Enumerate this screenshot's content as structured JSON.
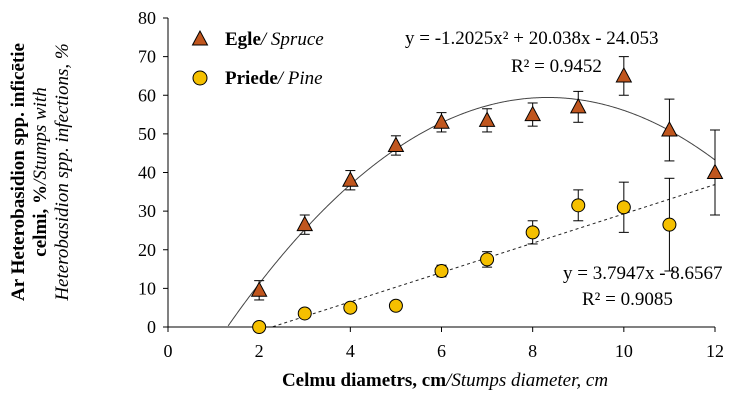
{
  "chart_data": {
    "type": "scatter",
    "y_title": {
      "line1": "Ar Heterobasidion spp. inficētie",
      "line2_bold": "celmi, %",
      "line2_italic": "/Stumps with",
      "line3_italic": "Heterobasidion spp. infections, %"
    },
    "x_title": {
      "bold": "Celmu diametrs, cm",
      "italic": "/Stumps diameter, cm"
    },
    "xlim": [
      0,
      12
    ],
    "ylim": [
      0,
      80
    ],
    "x_ticks": [
      0,
      2,
      4,
      6,
      8,
      10,
      12
    ],
    "y_ticks": [
      0,
      10,
      20,
      30,
      40,
      50,
      60,
      70,
      80
    ],
    "grid": false,
    "legend_position": "top-left",
    "series": [
      {
        "name_bold": "Egle",
        "name_italic": "/ Spruce",
        "marker": "triangle",
        "color": "#C0561E",
        "x": [
          2,
          3,
          4,
          5,
          6,
          7,
          8,
          9,
          10,
          11,
          12
        ],
        "y": [
          9.5,
          26.5,
          38,
          47,
          53,
          53.5,
          55,
          57,
          65,
          51,
          40
        ],
        "err": [
          2.5,
          2.5,
          2.5,
          2.5,
          2.5,
          3,
          3,
          4,
          5,
          8,
          11
        ],
        "trend": {
          "kind": "poly2",
          "coef": [
            -1.2025,
            20.038,
            -24.053
          ],
          "equation": "y = -1.2025x² + 20.038x - 24.053",
          "r2": "R² = 0.9452"
        }
      },
      {
        "name_bold": "Priede",
        "name_italic": "/ Pine",
        "marker": "circle",
        "color": "#F5C000",
        "x": [
          2,
          3,
          4,
          5,
          6,
          7,
          8,
          9,
          10,
          11
        ],
        "y": [
          0,
          3.5,
          5,
          5.5,
          14.5,
          17.5,
          24.5,
          31.5,
          31,
          26.5
        ],
        "err": [
          0,
          0,
          0,
          0,
          1.5,
          2,
          3,
          4,
          6.5,
          12
        ],
        "trend": {
          "kind": "linear",
          "coef": [
            3.7947,
            -8.6567
          ],
          "equation": "y = 3.7947x - 8.6567",
          "r2": "R² = 0.9085"
        }
      }
    ]
  }
}
